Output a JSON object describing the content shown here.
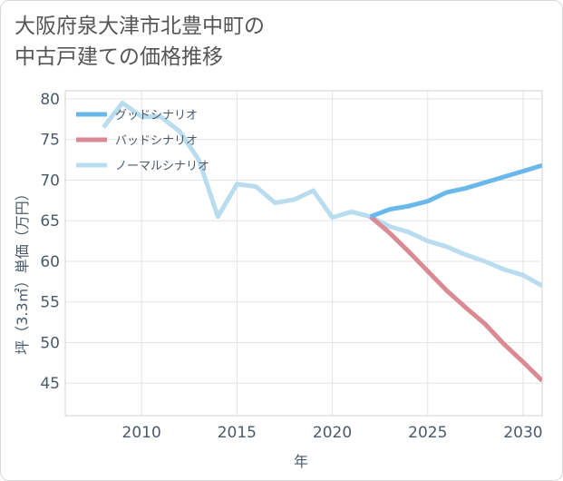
{
  "title": "大阪府泉大津市北豊中町の\n中古戸建ての価格推移",
  "chart_data": {
    "type": "line",
    "xlabel": "年",
    "ylabel": "坪（3.3㎡）単価（万円）",
    "xlim": [
      2006,
      2031
    ],
    "ylim": [
      41,
      81
    ],
    "x_ticks": [
      2010,
      2015,
      2020,
      2025,
      2030
    ],
    "y_ticks": [
      45,
      50,
      55,
      60,
      65,
      70,
      75,
      80
    ],
    "grid": true,
    "legend_position": "top-left",
    "series": [
      {
        "name": "グッドシナリオ",
        "color": "#6ab8ea",
        "x": [
          2022,
          2023,
          2024,
          2025,
          2026,
          2027,
          2028,
          2029,
          2030,
          2031
        ],
        "values": [
          65.5,
          66.4,
          66.8,
          67.4,
          68.5,
          69.0,
          69.7,
          70.4,
          71.1,
          71.8
        ]
      },
      {
        "name": "バッドシナリオ",
        "color": "#d98a93",
        "x": [
          2022,
          2023,
          2024,
          2025,
          2026,
          2027,
          2028,
          2029,
          2030,
          2031
        ],
        "values": [
          65.5,
          63.5,
          61.2,
          58.8,
          56.4,
          54.3,
          52.3,
          49.8,
          47.6,
          45.3
        ]
      },
      {
        "name": "ノーマルシナリオ",
        "color": "#b9dcee",
        "x": [
          2008,
          2009,
          2010,
          2011,
          2012,
          2013,
          2014,
          2015,
          2016,
          2017,
          2018,
          2019,
          2020,
          2021,
          2022,
          2023,
          2024,
          2025,
          2026,
          2027,
          2028,
          2029,
          2030,
          2031
        ],
        "values": [
          76.5,
          79.5,
          77.8,
          77.8,
          76.0,
          72.5,
          65.5,
          69.5,
          69.2,
          67.2,
          67.6,
          68.7,
          65.4,
          66.1,
          65.5,
          64.3,
          63.6,
          62.5,
          61.8,
          60.8,
          60.0,
          59.0,
          58.3,
          57.0
        ]
      }
    ]
  }
}
